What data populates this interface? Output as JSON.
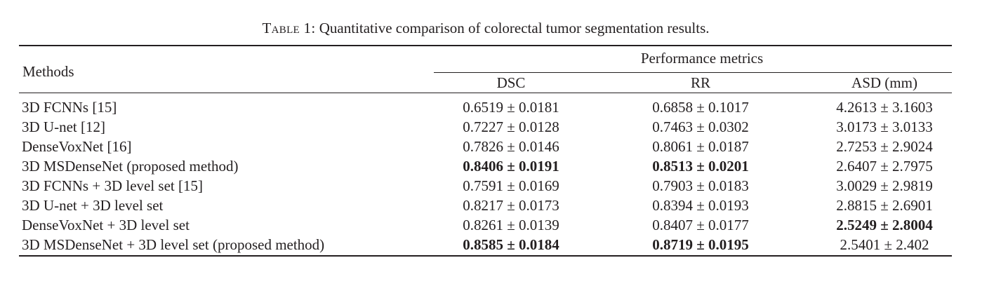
{
  "caption": {
    "label": "Table 1:",
    "text": " Quantitative comparison of colorectal tumor segmentation results."
  },
  "header": {
    "methods": "Methods",
    "group": "Performance metrics",
    "columns": [
      "DSC",
      "RR",
      "ASD (mm)"
    ]
  },
  "rows": [
    {
      "method": "3D FCNNs [15]",
      "values": [
        "0.6519 ± 0.0181",
        "0.6858 ± 0.1017",
        "4.2613 ± 3.1603"
      ],
      "bold": [
        false,
        false,
        false
      ]
    },
    {
      "method": "3D U-net [12]",
      "values": [
        "0.7227 ± 0.0128",
        "0.7463 ± 0.0302",
        "3.0173 ± 3.0133"
      ],
      "bold": [
        false,
        false,
        false
      ]
    },
    {
      "method": "DenseVoxNet [16]",
      "values": [
        "0.7826 ± 0.0146",
        "0.8061 ± 0.0187",
        "2.7253 ± 2.9024"
      ],
      "bold": [
        false,
        false,
        false
      ]
    },
    {
      "method": "3D MSDenseNet (proposed method)",
      "values": [
        "0.8406 ± 0.0191",
        "0.8513 ± 0.0201",
        "2.6407 ± 2.7975"
      ],
      "bold": [
        true,
        true,
        false
      ]
    },
    {
      "method": "3D FCNNs + 3D level set [15]",
      "values": [
        "0.7591 ± 0.0169",
        "0.7903 ± 0.0183",
        "3.0029 ± 2.9819"
      ],
      "bold": [
        false,
        false,
        false
      ]
    },
    {
      "method": "3D U-net + 3D level set",
      "values": [
        "0.8217 ± 0.0173",
        "0.8394 ± 0.0193",
        "2.8815 ± 2.6901"
      ],
      "bold": [
        false,
        false,
        false
      ]
    },
    {
      "method": "DenseVoxNet + 3D level set",
      "values": [
        "0.8261 ± 0.0139",
        "0.8407 ± 0.0177",
        "2.5249 ± 2.8004"
      ],
      "bold": [
        false,
        false,
        true
      ]
    },
    {
      "method": "3D MSDenseNet + 3D level set (proposed method)",
      "values": [
        "0.8585 ± 0.0184",
        "0.8719 ± 0.0195",
        "2.5401 ± 2.402"
      ],
      "bold": [
        true,
        true,
        false
      ]
    }
  ]
}
